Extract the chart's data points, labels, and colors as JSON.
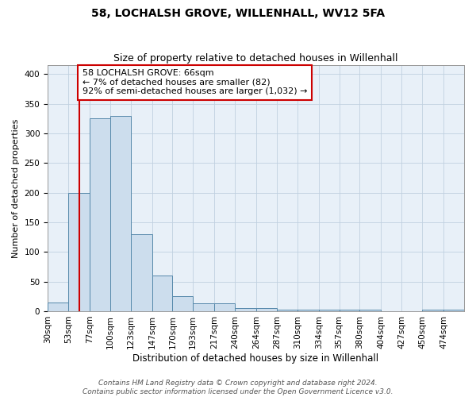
{
  "title1": "58, LOCHALSH GROVE, WILLENHALL, WV12 5FA",
  "title2": "Size of property relative to detached houses in Willenhall",
  "xlabel": "Distribution of detached houses by size in Willenhall",
  "ylabel": "Number of detached properties",
  "bar_edges": [
    30,
    53,
    77,
    100,
    123,
    147,
    170,
    193,
    217,
    240,
    264,
    287,
    310,
    334,
    357,
    380,
    404,
    427,
    450,
    474,
    497
  ],
  "bar_heights": [
    15,
    200,
    325,
    330,
    130,
    60,
    25,
    13,
    13,
    5,
    5,
    3,
    3,
    2,
    2,
    2,
    0,
    0,
    3,
    3
  ],
  "bar_color": "#ccdded",
  "bar_edge_color": "#5588aa",
  "property_line_x": 66,
  "property_line_color": "#cc0000",
  "annotation_text": "58 LOCHALSH GROVE: 66sqm\n← 7% of detached houses are smaller (82)\n92% of semi-detached houses are larger (1,032) →",
  "annotation_box_color": "#cc0000",
  "ylim": [
    0,
    415
  ],
  "yticks": [
    0,
    50,
    100,
    150,
    200,
    250,
    300,
    350,
    400
  ],
  "grid_color": "#c0d0e0",
  "background_color": "#e8f0f8",
  "footer_line1": "Contains HM Land Registry data © Crown copyright and database right 2024.",
  "footer_line2": "Contains public sector information licensed under the Open Government Licence v3.0.",
  "title1_fontsize": 10,
  "title2_fontsize": 9,
  "xlabel_fontsize": 8.5,
  "ylabel_fontsize": 8,
  "tick_fontsize": 7.5,
  "annotation_fontsize": 8,
  "footer_fontsize": 6.5
}
